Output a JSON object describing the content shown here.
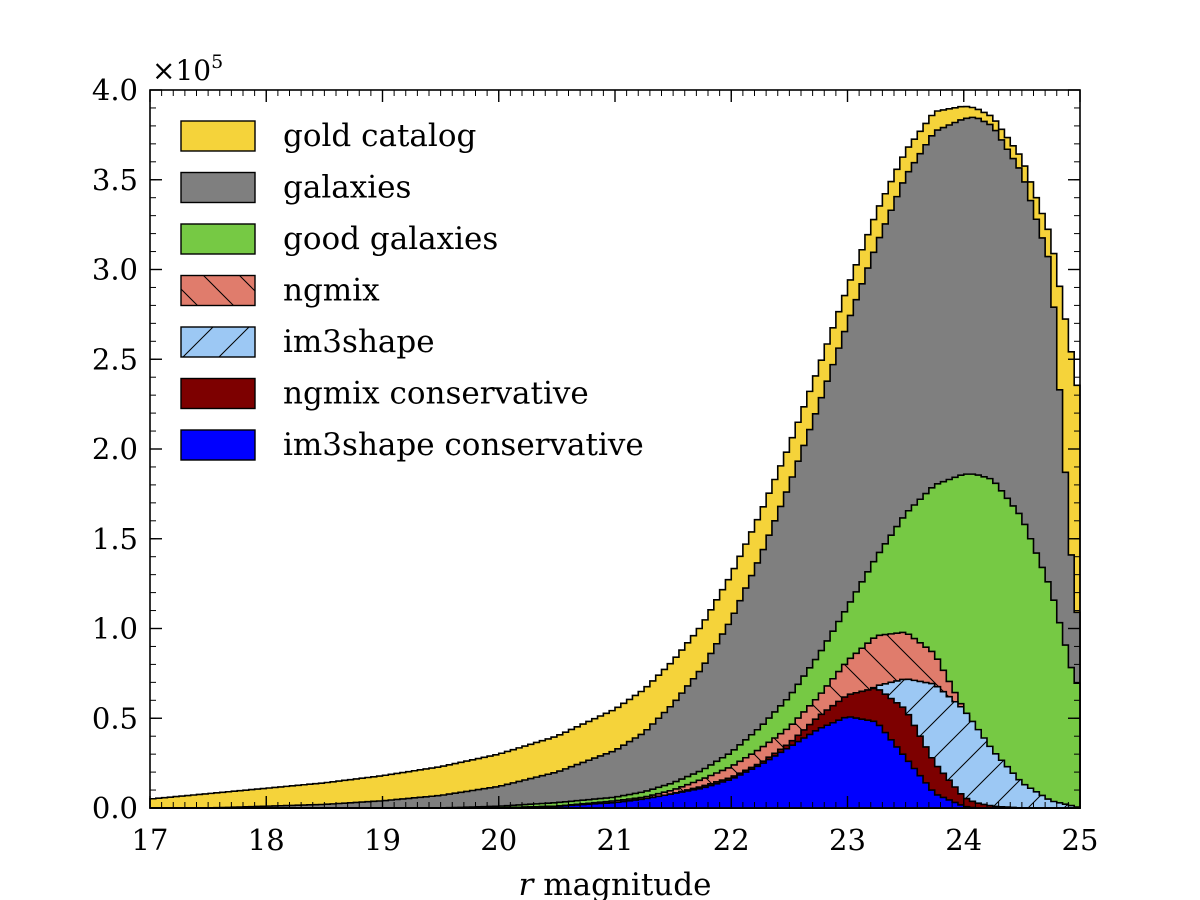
{
  "chart_data": {
    "type": "area",
    "xlabel_italic": "r",
    "xlabel_rest": " magnitude",
    "ylabel": "",
    "y_multiplier": "×10",
    "y_multiplier_exp": "5",
    "xlim": [
      17,
      25
    ],
    "ylim": [
      0,
      4.0
    ],
    "xticks": [
      "17",
      "18",
      "19",
      "20",
      "21",
      "22",
      "23",
      "24",
      "25"
    ],
    "yticks": [
      "0.0",
      "0.5",
      "1.0",
      "1.5",
      "2.0",
      "2.5",
      "3.0",
      "3.5",
      "4.0"
    ],
    "legend_position": "upper-left",
    "x": [
      17.0,
      17.5,
      18.0,
      18.5,
      19.0,
      19.5,
      20.0,
      20.5,
      21.0,
      21.25,
      21.5,
      21.75,
      22.0,
      22.25,
      22.5,
      22.75,
      23.0,
      23.25,
      23.5,
      23.75,
      24.0,
      24.1,
      24.25,
      24.5,
      24.75,
      24.95,
      25.0
    ],
    "series": [
      {
        "name": "gold catalog",
        "color": "#f5d33a",
        "pattern": "none",
        "values": [
          0.05,
          0.08,
          0.11,
          0.14,
          0.18,
          0.23,
          0.3,
          0.4,
          0.55,
          0.66,
          0.82,
          1.02,
          1.3,
          1.64,
          2.02,
          2.45,
          2.9,
          3.32,
          3.66,
          3.88,
          3.91,
          3.9,
          3.85,
          3.62,
          3.18,
          2.45,
          2.26
        ]
      },
      {
        "name": "galaxies",
        "color": "#7f7f7f",
        "pattern": "none",
        "values": [
          0.0,
          0.0,
          0.01,
          0.02,
          0.04,
          0.07,
          0.12,
          0.2,
          0.32,
          0.42,
          0.58,
          0.78,
          1.05,
          1.4,
          1.8,
          2.24,
          2.7,
          3.14,
          3.52,
          3.77,
          3.84,
          3.85,
          3.8,
          3.54,
          3.02,
          1.18,
          1.0
        ]
      },
      {
        "name": "good galaxies",
        "color": "#76c944",
        "pattern": "none",
        "values": [
          0.0,
          0.0,
          0.0,
          0.0,
          0.0,
          0.0,
          0.01,
          0.03,
          0.06,
          0.09,
          0.14,
          0.21,
          0.31,
          0.45,
          0.62,
          0.85,
          1.12,
          1.4,
          1.64,
          1.8,
          1.86,
          1.86,
          1.83,
          1.62,
          1.22,
          0.72,
          0.67
        ]
      },
      {
        "name": "ngmix",
        "color": "#e07c6c",
        "pattern": "backslash",
        "values": [
          0.0,
          0.0,
          0.0,
          0.0,
          0.0,
          0.0,
          0.0,
          0.01,
          0.04,
          0.06,
          0.1,
          0.16,
          0.23,
          0.33,
          0.45,
          0.62,
          0.82,
          0.96,
          0.98,
          0.86,
          0.55,
          0.4,
          0.2,
          0.05,
          0.01,
          0.0,
          0.0
        ]
      },
      {
        "name": "im3shape",
        "color": "#9cc8f4",
        "pattern": "slash",
        "values": [
          0.0,
          0.0,
          0.0,
          0.0,
          0.0,
          0.0,
          0.0,
          0.01,
          0.03,
          0.05,
          0.08,
          0.12,
          0.17,
          0.24,
          0.33,
          0.45,
          0.58,
          0.68,
          0.72,
          0.69,
          0.55,
          0.46,
          0.32,
          0.14,
          0.04,
          0.01,
          0.0
        ]
      },
      {
        "name": "ngmix conservative",
        "color": "#7d0000",
        "pattern": "none",
        "values": [
          0.0,
          0.0,
          0.0,
          0.0,
          0.0,
          0.0,
          0.0,
          0.01,
          0.03,
          0.05,
          0.08,
          0.12,
          0.17,
          0.25,
          0.36,
          0.51,
          0.63,
          0.67,
          0.55,
          0.25,
          0.06,
          0.03,
          0.01,
          0.0,
          0.0,
          0.0,
          0.0
        ]
      },
      {
        "name": "im3shape conservative",
        "color": "#0000ff",
        "pattern": "none",
        "values": [
          0.0,
          0.0,
          0.0,
          0.0,
          0.0,
          0.0,
          0.0,
          0.01,
          0.03,
          0.05,
          0.08,
          0.11,
          0.16,
          0.24,
          0.34,
          0.44,
          0.51,
          0.48,
          0.28,
          0.08,
          0.01,
          0.0,
          0.0,
          0.0,
          0.0,
          0.0,
          0.0
        ]
      }
    ]
  }
}
